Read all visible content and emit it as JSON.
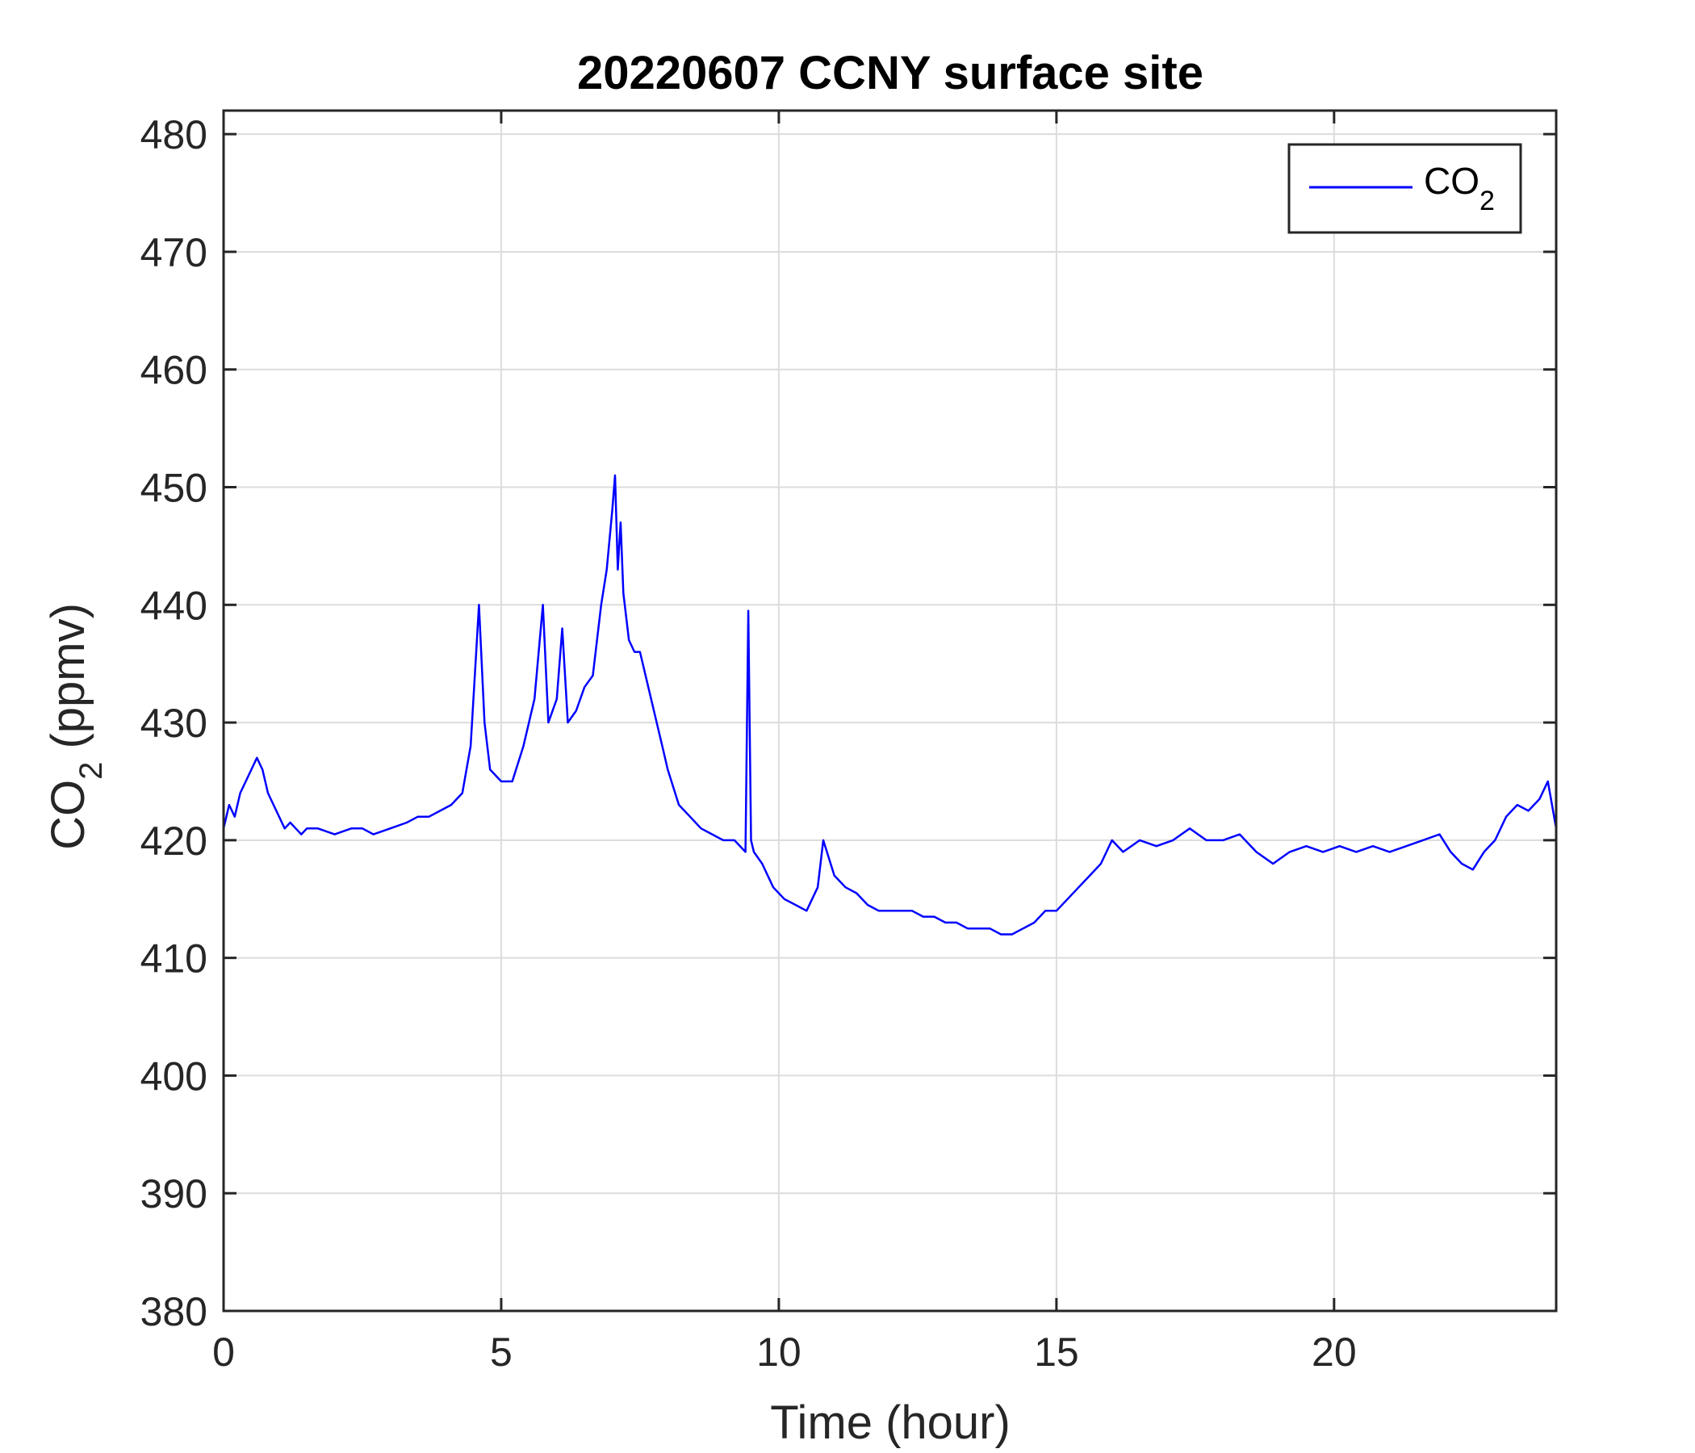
{
  "chart_data": {
    "type": "line",
    "title": "20220607 CCNY surface site",
    "xlabel": "Time (hour)",
    "ylabel": {
      "main": "CO",
      "sub": "2",
      "unit": "(ppmv)"
    },
    "xlim": [
      0,
      24
    ],
    "ylim": [
      380,
      482
    ],
    "xticks": [
      0,
      5,
      10,
      15,
      20
    ],
    "yticks": [
      380,
      390,
      400,
      410,
      420,
      430,
      440,
      450,
      460,
      470,
      480
    ],
    "grid": true,
    "legend": {
      "position": "top-right",
      "entries": [
        {
          "main": "CO",
          "sub": "2"
        }
      ]
    },
    "series": [
      {
        "name": "CO2",
        "color": "#0000ff",
        "x": [
          0,
          0.1,
          0.2,
          0.3,
          0.4,
          0.5,
          0.6,
          0.7,
          0.8,
          0.9,
          1.0,
          1.1,
          1.2,
          1.3,
          1.4,
          1.5,
          1.7,
          2.0,
          2.3,
          2.5,
          2.7,
          3.0,
          3.3,
          3.5,
          3.7,
          3.9,
          4.1,
          4.3,
          4.45,
          4.55,
          4.6,
          4.7,
          4.8,
          5.0,
          5.2,
          5.4,
          5.6,
          5.75,
          5.85,
          6.0,
          6.1,
          6.2,
          6.35,
          6.5,
          6.65,
          6.8,
          6.9,
          7.0,
          7.05,
          7.1,
          7.15,
          7.2,
          7.3,
          7.4,
          7.5,
          7.6,
          7.7,
          7.8,
          7.9,
          8.0,
          8.2,
          8.4,
          8.6,
          8.8,
          9.0,
          9.2,
          9.4,
          9.45,
          9.5,
          9.55,
          9.7,
          9.9,
          10.1,
          10.3,
          10.5,
          10.7,
          10.8,
          11.0,
          11.2,
          11.4,
          11.6,
          11.8,
          12.0,
          12.2,
          12.4,
          12.6,
          12.8,
          13.0,
          13.2,
          13.4,
          13.6,
          13.8,
          14.0,
          14.2,
          14.4,
          14.6,
          14.8,
          15.0,
          15.2,
          15.4,
          15.6,
          15.8,
          16.0,
          16.2,
          16.5,
          16.8,
          17.1,
          17.4,
          17.7,
          18.0,
          18.3,
          18.6,
          18.9,
          19.2,
          19.5,
          19.8,
          20.1,
          20.4,
          20.7,
          21.0,
          21.3,
          21.6,
          21.9,
          22.1,
          22.3,
          22.5,
          22.7,
          22.9,
          23.1,
          23.3,
          23.5,
          23.7,
          23.85,
          24.0
        ],
        "y": [
          421,
          423,
          422,
          424,
          425,
          426,
          427,
          426,
          424,
          423,
          422,
          421,
          421.5,
          421,
          420.5,
          421,
          421,
          420.5,
          421,
          421,
          420.5,
          421,
          421.5,
          422,
          422,
          422.5,
          423,
          424,
          428,
          436,
          440,
          430,
          426,
          425,
          425,
          428,
          432,
          440,
          430,
          432,
          438,
          430,
          431,
          433,
          434,
          440,
          443,
          448,
          451,
          443,
          447,
          441,
          437,
          436,
          436,
          434,
          432,
          430,
          428,
          426,
          423,
          422,
          421,
          420.5,
          420,
          420,
          419,
          439.5,
          420,
          419,
          418,
          416,
          415,
          414.5,
          414,
          416,
          420,
          417,
          416,
          415.5,
          414.5,
          414,
          414,
          414,
          414,
          413.5,
          413.5,
          413,
          413,
          412.5,
          412.5,
          412.5,
          412,
          412,
          412.5,
          413,
          414,
          414,
          415,
          416,
          417,
          418,
          420,
          419,
          420,
          419.5,
          420,
          421,
          420,
          420,
          420.5,
          419,
          418,
          419,
          419.5,
          419,
          419.5,
          419,
          419.5,
          419,
          419.5,
          420,
          420.5,
          419,
          418,
          417.5,
          419,
          420,
          422,
          423,
          422.5,
          423.5,
          425,
          421
        ]
      }
    ]
  }
}
